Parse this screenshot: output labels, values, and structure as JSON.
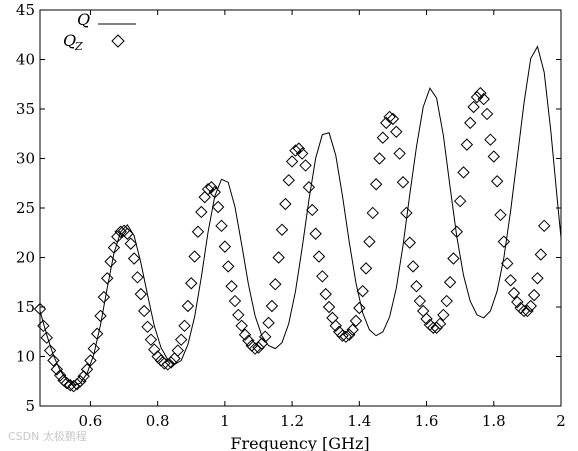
{
  "chart_data": {
    "type": "line",
    "xlabel": "Frequency [GHz]",
    "ylabel": "",
    "xlim": [
      0.45,
      2.0
    ],
    "ylim": [
      5,
      45
    ],
    "x_ticks": [
      "0.6",
      "0.8",
      "1",
      "1.2",
      "1.4",
      "1.6",
      "1.8",
      "2"
    ],
    "y_ticks": [
      "5",
      "10",
      "15",
      "20",
      "25",
      "30",
      "35",
      "40",
      "45"
    ],
    "grid": false,
    "legend_position": "top-left",
    "series": [
      {
        "name": "Q",
        "style": "solid-line",
        "color": "#000000",
        "x": [
          0.45,
          0.47,
          0.49,
          0.51,
          0.53,
          0.55,
          0.57,
          0.59,
          0.61,
          0.63,
          0.65,
          0.67,
          0.69,
          0.71,
          0.73,
          0.75,
          0.77,
          0.79,
          0.81,
          0.83,
          0.85,
          0.87,
          0.89,
          0.91,
          0.93,
          0.95,
          0.97,
          0.99,
          1.01,
          1.03,
          1.05,
          1.07,
          1.09,
          1.11,
          1.13,
          1.15,
          1.17,
          1.19,
          1.21,
          1.23,
          1.25,
          1.27,
          1.29,
          1.31,
          1.33,
          1.35,
          1.37,
          1.39,
          1.41,
          1.43,
          1.45,
          1.47,
          1.49,
          1.51,
          1.53,
          1.55,
          1.57,
          1.59,
          1.61,
          1.63,
          1.65,
          1.67,
          1.69,
          1.71,
          1.73,
          1.75,
          1.77,
          1.79,
          1.81,
          1.83,
          1.85,
          1.87,
          1.89,
          1.91,
          1.93,
          1.95,
          1.97,
          1.99,
          2.0
        ],
        "y": [
          14.6,
          12.2,
          10.1,
          8.6,
          7.6,
          7.1,
          7.3,
          8.3,
          10.2,
          13.2,
          16.9,
          20.4,
          22.6,
          23.3,
          22.2,
          19.5,
          16.2,
          13.1,
          10.9,
          9.7,
          9.2,
          9.6,
          11.2,
          14.0,
          18.0,
          22.6,
          26.2,
          27.9,
          27.6,
          25.1,
          21.3,
          17.3,
          14.1,
          12.1,
          11.1,
          10.8,
          11.4,
          13.3,
          16.6,
          21.0,
          25.8,
          30.0,
          32.4,
          32.6,
          30.3,
          26.2,
          21.6,
          17.4,
          14.4,
          12.7,
          12.1,
          12.5,
          14.0,
          16.9,
          21.2,
          26.3,
          31.2,
          35.2,
          37.1,
          36.1,
          32.3,
          27.1,
          22.1,
          18.2,
          15.6,
          14.2,
          13.9,
          14.6,
          16.6,
          20.0,
          24.7,
          30.1,
          35.6,
          40.1,
          41.3,
          38.7,
          32.7,
          25.5,
          22.0
        ]
      },
      {
        "name": "Q_Z",
        "style": "diamond-markers",
        "color": "#000000",
        "x": [
          0.45,
          0.46,
          0.47,
          0.48,
          0.49,
          0.5,
          0.51,
          0.52,
          0.53,
          0.54,
          0.55,
          0.56,
          0.57,
          0.58,
          0.59,
          0.6,
          0.61,
          0.62,
          0.63,
          0.64,
          0.65,
          0.66,
          0.67,
          0.68,
          0.69,
          0.7,
          0.71,
          0.72,
          0.73,
          0.74,
          0.75,
          0.76,
          0.77,
          0.78,
          0.79,
          0.8,
          0.81,
          0.82,
          0.83,
          0.84,
          0.85,
          0.86,
          0.87,
          0.88,
          0.89,
          0.9,
          0.91,
          0.92,
          0.93,
          0.94,
          0.95,
          0.96,
          0.97,
          0.98,
          0.99,
          1.0,
          1.01,
          1.02,
          1.03,
          1.04,
          1.05,
          1.06,
          1.07,
          1.08,
          1.09,
          1.1,
          1.11,
          1.12,
          1.13,
          1.14,
          1.15,
          1.16,
          1.17,
          1.18,
          1.19,
          1.2,
          1.21,
          1.22,
          1.23,
          1.24,
          1.25,
          1.26,
          1.27,
          1.28,
          1.29,
          1.3,
          1.31,
          1.32,
          1.33,
          1.34,
          1.35,
          1.36,
          1.37,
          1.38,
          1.39,
          1.4,
          1.41,
          1.42,
          1.43,
          1.44,
          1.45,
          1.46,
          1.47,
          1.48,
          1.49,
          1.5,
          1.51,
          1.52,
          1.53,
          1.54,
          1.55,
          1.56,
          1.57,
          1.58,
          1.59,
          1.6,
          1.61,
          1.62,
          1.63,
          1.64,
          1.65,
          1.66,
          1.67,
          1.68,
          1.69,
          1.7,
          1.71,
          1.72,
          1.73,
          1.74,
          1.75,
          1.76,
          1.77,
          1.78,
          1.79,
          1.8,
          1.81,
          1.82,
          1.83,
          1.84,
          1.85,
          1.86,
          1.87,
          1.88,
          1.89,
          1.9,
          1.91,
          1.92,
          1.93,
          1.94,
          1.95
        ],
        "y": [
          14.8,
          13.1,
          11.9,
          10.6,
          9.6,
          8.7,
          8.1,
          7.6,
          7.3,
          7.1,
          7.0,
          7.2,
          7.5,
          8.0,
          8.7,
          9.6,
          10.8,
          12.3,
          14.1,
          16.0,
          17.9,
          19.6,
          21.0,
          22.1,
          22.6,
          22.7,
          22.4,
          21.4,
          19.9,
          18.0,
          16.3,
          14.6,
          13.0,
          11.7,
          10.7,
          10.0,
          9.6,
          9.3,
          9.2,
          9.4,
          9.8,
          10.6,
          11.7,
          13.1,
          15.1,
          17.4,
          20.1,
          22.6,
          24.6,
          26.1,
          26.9,
          27.1,
          26.6,
          25.1,
          23.2,
          21.1,
          19.1,
          17.1,
          15.6,
          14.2,
          13.1,
          12.2,
          11.6,
          11.1,
          10.8,
          10.9,
          11.3,
          12.0,
          13.4,
          15.1,
          17.3,
          20.0,
          22.8,
          25.4,
          27.8,
          29.7,
          30.8,
          31.0,
          30.5,
          29.3,
          27.1,
          24.8,
          22.4,
          20.1,
          18.1,
          16.3,
          15.0,
          13.9,
          13.1,
          12.5,
          12.1,
          12.0,
          12.2,
          12.7,
          13.6,
          14.9,
          16.6,
          18.9,
          21.6,
          24.5,
          27.4,
          30.0,
          32.1,
          33.6,
          34.2,
          34.0,
          32.7,
          30.5,
          27.6,
          24.5,
          21.5,
          19.1,
          17.1,
          15.6,
          14.6,
          13.8,
          13.2,
          12.9,
          12.9,
          13.3,
          14.2,
          15.6,
          17.5,
          19.9,
          22.6,
          25.7,
          28.6,
          31.4,
          33.6,
          35.2,
          36.2,
          36.6,
          36.0,
          34.5,
          31.9,
          30.2,
          27.7,
          24.3,
          21.6,
          19.4,
          17.7,
          16.4,
          15.5,
          14.9,
          14.6,
          14.6,
          15.1,
          16.2,
          17.9,
          20.3,
          23.2
        ]
      }
    ]
  },
  "legend": {
    "entry_line_label": "Q",
    "entry_marker_label": "Q",
    "entry_marker_subscript": "Z"
  },
  "watermark": "CSDN 太极鹏程"
}
